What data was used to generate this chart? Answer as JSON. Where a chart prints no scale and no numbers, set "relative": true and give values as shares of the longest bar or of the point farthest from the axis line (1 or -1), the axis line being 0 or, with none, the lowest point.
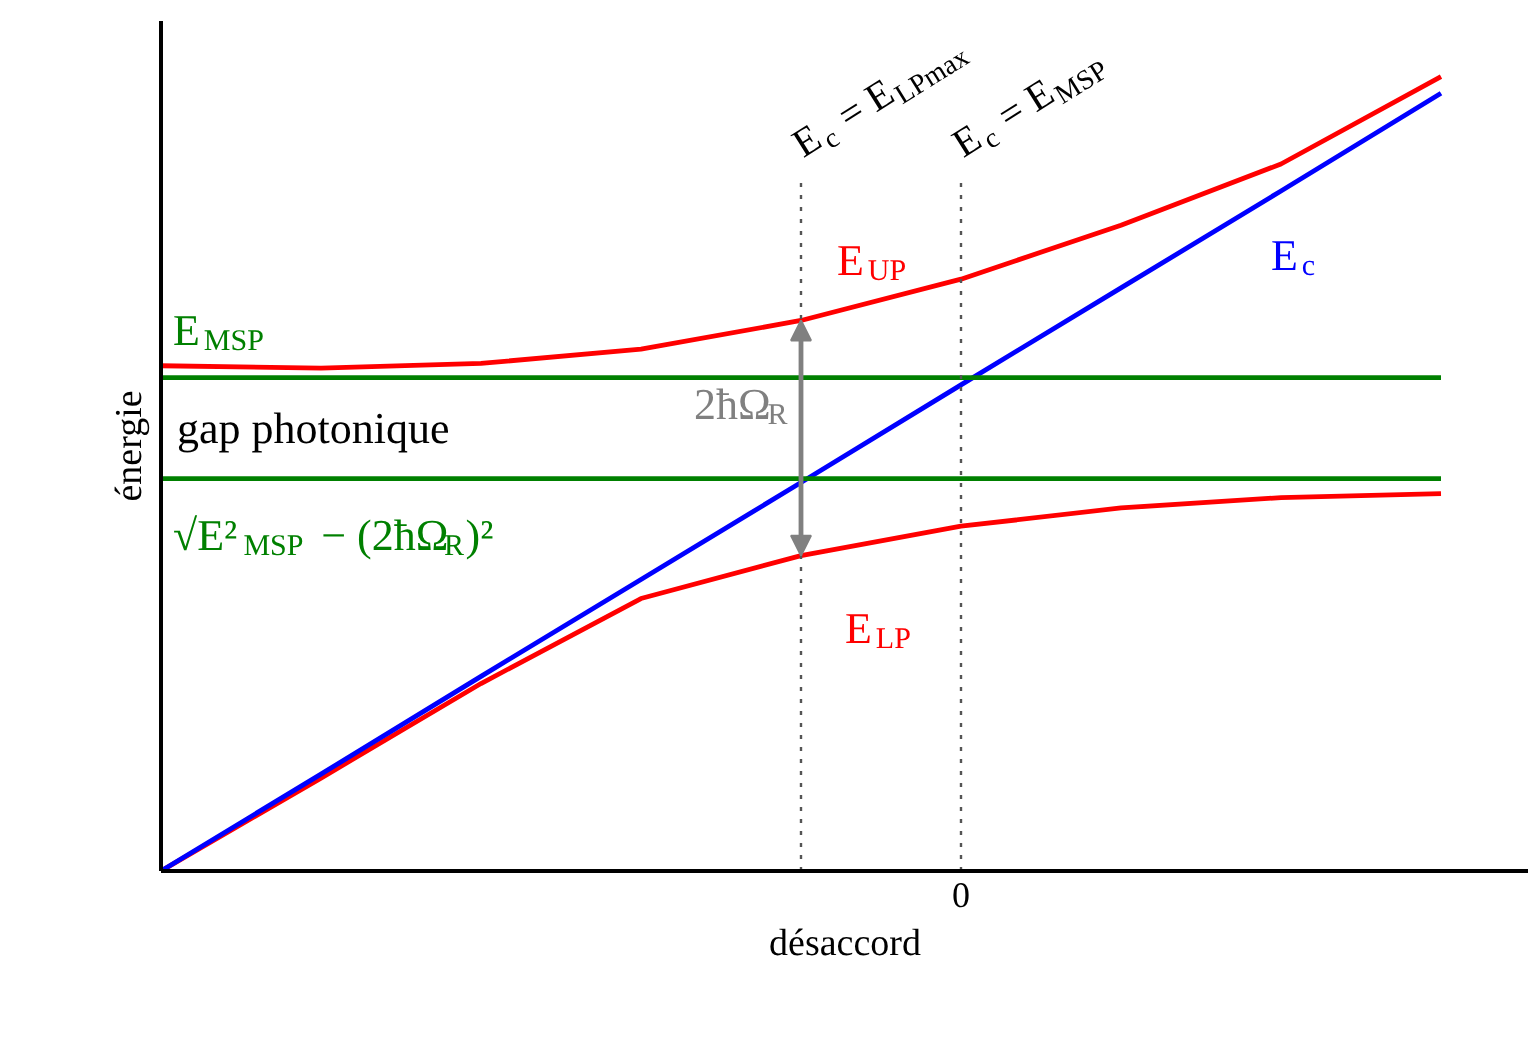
{
  "chart_data": {
    "type": "line",
    "relative": true,
    "xlabel": "désaccord",
    "ylabel": "énergie",
    "categories": [
      null,
      null,
      null,
      null,
      null,
      null,
      null,
      null,
      null
    ],
    "marker": "none",
    "line_style": "solid",
    "series": [
      {
        "name": "E$_{UP}$",
        "color": "#ff0000",
        "values": [
          0.636,
          0.633,
          0.639,
          0.657,
          0.693,
          0.745,
          0.813,
          0.89,
          1.0
        ]
      },
      {
        "name": "E$_{LP}$",
        "color": "#ff0000",
        "values": [
          0,
          0.117,
          0.236,
          0.343,
          0.397,
          0.434,
          0.457,
          0.47,
          0.475
        ]
      },
      {
        "name": "E$_{c}$",
        "color": "#0000ff",
        "values": [
          0,
          0.122,
          0.245,
          0.367,
          0.489,
          0.612,
          0.734,
          0.856,
          0.979
        ]
      },
      {
        "name": "E$_{MSP}$",
        "color": "#008000",
        "values": [
          0.621,
          0.621,
          0.621,
          0.621,
          0.621,
          0.621,
          0.621,
          0.621,
          0.621
        ]
      },
      {
        "name": "√E²$_{MSP}$ − (2ħΩ$_{R}$)²",
        "color": "#008000",
        "values": [
          0.494,
          0.494,
          0.494,
          0.494,
          0.494,
          0.494,
          0.494,
          0.494,
          0.494
        ]
      }
    ],
    "annotations": [
      "gap photonique",
      "2ħΩ$_{R}$",
      "0",
      "E$_{c}$ = E$_{LPmax}$",
      "E$_{c}$ = E$_{MSP}$"
    ]
  }
}
